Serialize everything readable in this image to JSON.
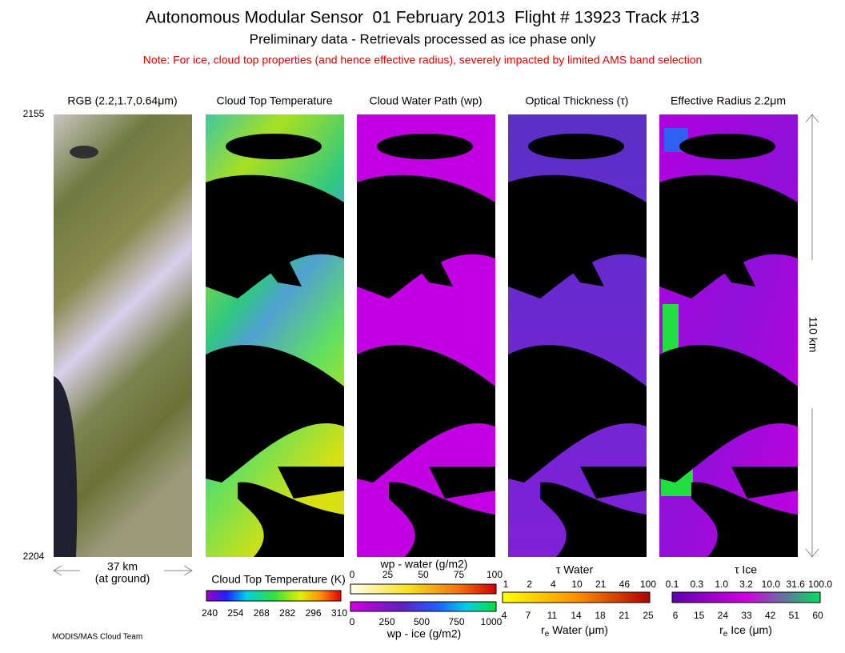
{
  "header": {
    "title": "Autonomous Modular Sensor  01 February 2013  Flight # 13923 Track #13",
    "subtitle": "Preliminary data - Retrievals processed as ice phase only",
    "note": "Note: For ice, cloud top properties (and hence effective radius), severely impacted by limited AMS band selection"
  },
  "panels": [
    {
      "label": "RGB (2.2,1.7,0.64μm)"
    },
    {
      "label": "Cloud Top Temperature"
    },
    {
      "label": "Cloud Water Path (wp)"
    },
    {
      "label": "Optical Thickness (τ)"
    },
    {
      "label": "Effective Radius 2.2μm"
    }
  ],
  "scanlines": {
    "start": "2155",
    "end": "2204"
  },
  "scale": {
    "across": "37 km",
    "across_note": "(at ground)",
    "along": "110 km"
  },
  "colorbars": {
    "temperature": {
      "label": "Cloud Top Temperature (K)",
      "ticks": [
        "240",
        "254",
        "268",
        "282",
        "296",
        "310"
      ]
    },
    "water_path": {
      "water_label": "wp - water (g/m2)",
      "water_ticks": [
        "0",
        "25",
        "50",
        "75",
        "100"
      ],
      "ice_label": "wp - ice (g/m2)",
      "ice_ticks": [
        "0",
        "250",
        "500",
        "750",
        "1000"
      ]
    },
    "water": {
      "tau_label": "τ Water",
      "tau_ticks": [
        "1",
        "2",
        "4",
        "10",
        "21",
        "46",
        "100"
      ],
      "re_symbol": "r",
      "re_sub": "e",
      "re_rest": " Water (μm)",
      "re_ticks": [
        "4",
        "7",
        "11",
        "14",
        "18",
        "21",
        "25"
      ]
    },
    "ice": {
      "tau_label": "τ Ice",
      "tau_ticks": [
        "0.1",
        "0.3",
        "1.0",
        "3.2",
        "10.0",
        "31.6",
        "100.0"
      ],
      "re_symbol": "r",
      "re_sub": "e",
      "re_rest": " Ice (μm)",
      "re_ticks": [
        "6",
        "15",
        "24",
        "33",
        "42",
        "51",
        "60"
      ]
    }
  },
  "footer": "MODIS/MAS Cloud Team"
}
